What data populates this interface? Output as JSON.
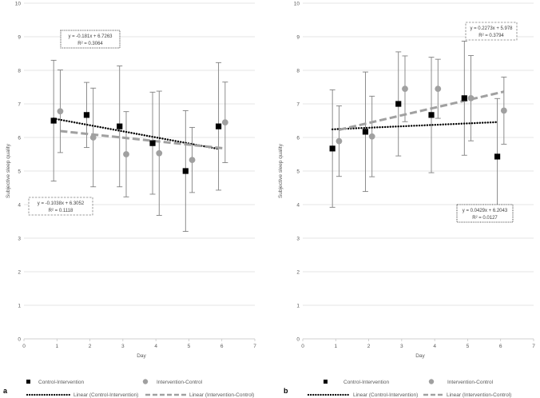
{
  "chart_data": [
    {
      "panel": "a",
      "type": "scatter",
      "xlabel": "Day",
      "ylabel": "Subjective sleep quality",
      "xlim": [
        0,
        7
      ],
      "ylim": [
        0,
        10
      ],
      "xticks": [
        0,
        1,
        2,
        3,
        4,
        5,
        6,
        7
      ],
      "yticks": [
        0,
        1,
        2,
        3,
        4,
        5,
        6,
        7,
        8,
        9,
        10
      ],
      "grid": "horizontal",
      "series": [
        {
          "name": "Control-Intervention",
          "color": "#000000",
          "marker": "square",
          "x": [
            0.9,
            1.9,
            2.9,
            3.9,
            4.9,
            5.9
          ],
          "y": [
            6.5,
            6.67,
            6.33,
            5.83,
            5.0,
            6.33
          ],
          "err": [
            1.8,
            0.97,
            1.8,
            1.52,
            1.8,
            1.9
          ]
        },
        {
          "name": "Intervention-Control",
          "color": "#a0a0a0",
          "marker": "circle",
          "x": [
            1.1,
            2.1,
            3.1,
            4.1,
            5.1,
            6.1
          ],
          "y": [
            6.78,
            6.0,
            5.5,
            5.53,
            5.33,
            6.45
          ],
          "err": [
            1.23,
            1.47,
            1.27,
            1.85,
            0.97,
            1.2
          ]
        }
      ],
      "trendlines": [
        {
          "name": "Linear (Control-Intervention)",
          "slope": -0.181,
          "intercept": 6.7263,
          "x_range": [
            0.9,
            5.9
          ],
          "style": "dotted",
          "color": "#000000"
        },
        {
          "name": "Linear (Intervention-Control)",
          "slope": -0.1038,
          "intercept": 6.3052,
          "x_range": [
            1.1,
            6.1
          ],
          "style": "dashed",
          "color": "#a0a0a0"
        }
      ],
      "annotations": [
        {
          "id": "ci",
          "line1": "y = -0.181x + 6.7263",
          "line2": "R² = 0.3064",
          "border": "dotted"
        },
        {
          "id": "ic",
          "line1": "y = -0.1038x + 6.3052",
          "line2": "R² = 0.1118",
          "border": "dashed"
        }
      ],
      "legend": {
        "marker_items": [
          "Control-Intervention",
          "Intervention-Control"
        ],
        "line_items": [
          "Linear (Control-Intervention)",
          "Linear (Intervention-Control)"
        ],
        "position": "bottom"
      }
    },
    {
      "panel": "b",
      "type": "scatter",
      "xlabel": "Day",
      "ylabel": "Subjective sleep quality",
      "xlim": [
        0,
        7
      ],
      "ylim": [
        0,
        10
      ],
      "xticks": [
        0,
        1,
        2,
        3,
        4,
        5,
        6,
        7
      ],
      "yticks": [
        0,
        1,
        2,
        3,
        4,
        5,
        6,
        7,
        8,
        9,
        10
      ],
      "grid": "horizontal",
      "series": [
        {
          "name": "Control-Intervention",
          "color": "#000000",
          "marker": "square",
          "x": [
            0.9,
            1.9,
            2.9,
            3.9,
            4.9,
            5.9
          ],
          "y": [
            5.67,
            6.17,
            7.0,
            6.67,
            7.17,
            5.43
          ],
          "err": [
            1.75,
            1.78,
            1.55,
            1.72,
            1.7,
            1.73
          ]
        },
        {
          "name": "Intervention-Control",
          "color": "#a0a0a0",
          "marker": "circle",
          "x": [
            1.1,
            2.1,
            3.1,
            4.1,
            5.1,
            6.1
          ],
          "y": [
            5.89,
            6.03,
            7.45,
            7.45,
            7.17,
            6.8
          ],
          "err": [
            1.05,
            1.2,
            0.98,
            0.88,
            1.27,
            1.0
          ]
        }
      ],
      "trendlines": [
        {
          "name": "Linear (Control-Intervention)",
          "slope": 0.0429,
          "intercept": 6.2043,
          "x_range": [
            0.9,
            5.9
          ],
          "style": "dotted",
          "color": "#000000"
        },
        {
          "name": "Linear (Intervention-Control)",
          "slope": 0.2273,
          "intercept": 5.978,
          "x_range": [
            1.1,
            6.1
          ],
          "style": "dashed",
          "color": "#a0a0a0"
        }
      ],
      "annotations": [
        {
          "id": "ic",
          "line1": "y = 0.2273x + 5.978",
          "line2": "R² = 0.3794",
          "border": "dashed"
        },
        {
          "id": "ci",
          "line1": "y = 0.0429x + 6.2043",
          "line2": "R² = 0.0127",
          "border": "dotted"
        }
      ],
      "legend": {
        "marker_items": [
          "Control-Intervention",
          "Intervention-Control"
        ],
        "line_items": [
          "Linear (Control-Intervention)",
          "Linear (Intervention-Control)"
        ],
        "position": "bottom"
      }
    }
  ]
}
